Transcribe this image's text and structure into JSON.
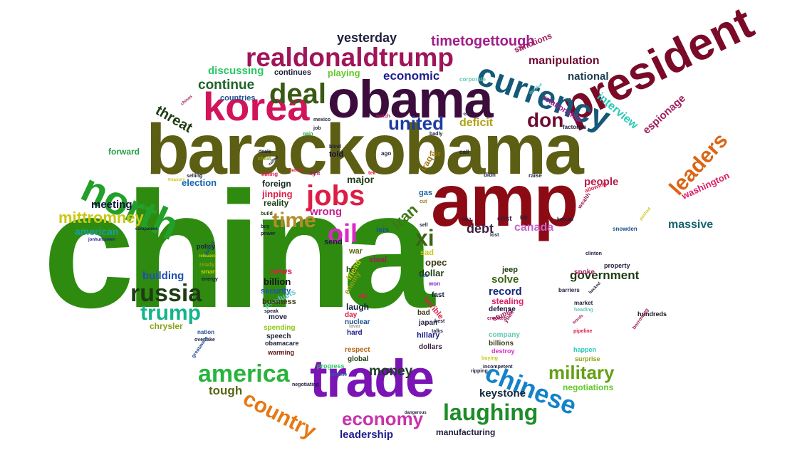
{
  "words": [
    {
      "text": "china",
      "color": "#2e8b0f"
    },
    {
      "text": "barackobama",
      "color": "#5c5e14"
    },
    {
      "text": "amp",
      "color": "#8b0a14"
    },
    {
      "text": "obama",
      "color": "#3c0c3c"
    },
    {
      "text": "trade",
      "color": "#7a14b4"
    },
    {
      "text": "president",
      "color": "#7a0a28"
    },
    {
      "text": "korea",
      "color": "#d2145a"
    },
    {
      "text": "north",
      "color": "#22a02a"
    },
    {
      "text": "currency",
      "color": "#145a78"
    },
    {
      "text": "realdonaldtrump",
      "color": "#a0145a"
    },
    {
      "text": "deal",
      "color": "#3a5a14"
    },
    {
      "text": "jobs",
      "color": "#dc1e46"
    },
    {
      "text": "oil",
      "color": "#dc28c8"
    },
    {
      "text": "russia",
      "color": "#1e3c14"
    },
    {
      "text": "america",
      "color": "#28b43c"
    },
    {
      "text": "trump",
      "color": "#14b48c"
    },
    {
      "text": "chinese",
      "color": "#1482c8"
    },
    {
      "text": "country",
      "color": "#e67814"
    },
    {
      "text": "laughing",
      "color": "#1e8c28"
    },
    {
      "text": "economy",
      "color": "#c832aa"
    },
    {
      "text": "leaders",
      "color": "#dc6414"
    },
    {
      "text": "don",
      "color": "#6e0a32"
    },
    {
      "text": "time",
      "color": "#b48c28"
    },
    {
      "text": "xi",
      "color": "#3c6414"
    },
    {
      "text": "military",
      "color": "#64a014"
    },
    {
      "text": "united",
      "color": "#1e3ca0"
    },
    {
      "text": "timetogettough",
      "color": "#a01e8c"
    },
    {
      "text": "mittromney",
      "color": "#c8c814"
    },
    {
      "text": "money",
      "color": "#1e3c28"
    },
    {
      "text": "yesterday",
      "color": "#1e1e3c"
    },
    {
      "text": "interview",
      "color": "#28c8b4"
    },
    {
      "text": "espionage",
      "color": "#a01e5a"
    },
    {
      "text": "threat",
      "color": "#1e3c14"
    },
    {
      "text": "continue",
      "color": "#1e6428"
    },
    {
      "text": "economic",
      "color": "#1e1e8c"
    },
    {
      "text": "manipulation",
      "color": "#6e0a32"
    },
    {
      "text": "government",
      "color": "#1e3c14"
    },
    {
      "text": "massive",
      "color": "#14646e"
    },
    {
      "text": "debt",
      "color": "#3c1e3c"
    },
    {
      "text": "iran",
      "color": "#3c7814"
    },
    {
      "text": "canada",
      "color": "#c864c8"
    },
    {
      "text": "deficit",
      "color": "#b4a014"
    },
    {
      "text": "building",
      "color": "#1e50b4"
    },
    {
      "text": "leadership",
      "color": "#1e1e8c"
    },
    {
      "text": "keystone",
      "color": "#14283c"
    },
    {
      "text": "tough",
      "color": "#5a6414"
    },
    {
      "text": "american",
      "color": "#14a0a0"
    },
    {
      "text": "meeting",
      "color": "#14143c"
    },
    {
      "text": "discussing",
      "color": "#28c864"
    },
    {
      "text": "people",
      "color": "#b41e46"
    },
    {
      "text": "washington",
      "color": "#dc1e64"
    },
    {
      "text": "national",
      "color": "#1e3c50"
    },
    {
      "text": "wrong",
      "color": "#c81e8c"
    },
    {
      "text": "major",
      "color": "#1e3c14"
    },
    {
      "text": "solve",
      "color": "#3c6414"
    },
    {
      "text": "record",
      "color": "#14287a"
    },
    {
      "text": "chrysler",
      "color": "#8ca014"
    },
    {
      "text": "negotiations",
      "color": "#64c828"
    },
    {
      "text": "manufacturing",
      "color": "#1e1e3c"
    },
    {
      "text": "playing",
      "color": "#64c828"
    },
    {
      "text": "election",
      "color": "#1464b4"
    },
    {
      "text": "sanctions",
      "color": "#a01e5a"
    },
    {
      "text": "jinping",
      "color": "#dc1e46"
    },
    {
      "text": "reality",
      "color": "#1e3c14"
    },
    {
      "text": "opec",
      "color": "#3c3c14"
    },
    {
      "text": "dollar",
      "color": "#1e3c14"
    },
    {
      "text": "laugh",
      "color": "#141e3c"
    },
    {
      "text": "billion",
      "color": "#14141e"
    },
    {
      "text": "news",
      "color": "#dc1e46"
    },
    {
      "text": "stealing",
      "color": "#dc1e64"
    },
    {
      "text": "foreign",
      "color": "#14281e"
    },
    {
      "text": "forward",
      "color": "#28a046"
    },
    {
      "text": "continues",
      "color": "#1e1e3c"
    },
    {
      "text": "countries",
      "color": "#1e508c"
    },
    {
      "text": "relationship",
      "color": "#a01e8c"
    },
    {
      "text": "told",
      "color": "#14143c"
    },
    {
      "text": "send",
      "color": "#1e1e3c"
    },
    {
      "text": "isis",
      "color": "#1e508c"
    },
    {
      "text": "war",
      "color": "#5a6414"
    },
    {
      "text": "steal",
      "color": "#a01e5a"
    },
    {
      "text": "sad",
      "color": "#c8c814"
    },
    {
      "text": "hit",
      "color": "#1e3c14"
    },
    {
      "text": "friend",
      "color": "#c8c814"
    },
    {
      "text": "enemy",
      "color": "#8ca014"
    },
    {
      "text": "security",
      "color": "#1e50b4"
    },
    {
      "text": "products",
      "color": "#64c8c8"
    },
    {
      "text": "business",
      "color": "#3c3c14"
    },
    {
      "text": "move",
      "color": "#1e1e3c"
    },
    {
      "text": "spending",
      "color": "#8cc814"
    },
    {
      "text": "speech",
      "color": "#1e1e3c"
    },
    {
      "text": "obamacare",
      "color": "#1e1e3c"
    },
    {
      "text": "warming",
      "color": "#5a1414"
    },
    {
      "text": "nuclear",
      "color": "#1e508c"
    },
    {
      "text": "hard",
      "color": "#1e1e8c"
    },
    {
      "text": "respect",
      "color": "#b46414"
    },
    {
      "text": "global",
      "color": "#1e3c14"
    },
    {
      "text": "day",
      "color": "#dc1e46"
    },
    {
      "text": "lavar",
      "color": "#a0a0a0"
    },
    {
      "text": "terrible",
      "color": "#dc1e46"
    },
    {
      "text": "fast",
      "color": "#1e1e3c"
    },
    {
      "text": "bad",
      "color": "#3c3c14"
    },
    {
      "text": "japan",
      "color": "#1e1e3c"
    },
    {
      "text": "hillary",
      "color": "#1e1e8c"
    },
    {
      "text": "dollars",
      "color": "#3c1e3c"
    },
    {
      "text": "stupid",
      "color": "#a01e5a"
    },
    {
      "text": "jeep",
      "color": "#1e3c14"
    },
    {
      "text": "defense",
      "color": "#14143c"
    },
    {
      "text": "company",
      "color": "#64c8b4"
    },
    {
      "text": "billions",
      "color": "#3c3c14"
    },
    {
      "text": "destroy",
      "color": "#dc28c8"
    },
    {
      "text": "cost",
      "color": "#3c1e3c"
    },
    {
      "text": "gas",
      "color": "#1e64a0"
    },
    {
      "text": "iraq",
      "color": "#a07814"
    },
    {
      "text": "property",
      "color": "#1e1e3c"
    },
    {
      "text": "spoke",
      "color": "#a01e5a"
    },
    {
      "text": "market",
      "color": "#1e1e3c"
    },
    {
      "text": "hundreds",
      "color": "#14141e"
    },
    {
      "text": "happen",
      "color": "#28c8b4"
    },
    {
      "text": "surprise",
      "color": "#8ca014"
    },
    {
      "text": "policy",
      "color": "#1e1e3c"
    },
    {
      "text": "ready",
      "color": "#8ca014"
    },
    {
      "text": "smart",
      "color": "#c8c814"
    },
    {
      "text": "energy",
      "color": "#1e1e3c"
    },
    {
      "text": "nation",
      "color": "#1e508c"
    },
    {
      "text": "overtake",
      "color": "#1e1e3c"
    },
    {
      "text": "greatawire",
      "color": "#1e508c"
    },
    {
      "text": "progress",
      "color": "#28c864"
    },
    {
      "text": "negotiating",
      "color": "#1e1e3c"
    },
    {
      "text": "fortune",
      "color": "#1e64a0"
    },
    {
      "text": "ally",
      "color": "#dc1e46"
    },
    {
      "text": "snowden",
      "color": "#1e508c"
    },
    {
      "text": "wealth",
      "color": "#a01e5a"
    },
    {
      "text": "allowing",
      "color": "#dc1e46"
    },
    {
      "text": "factories",
      "color": "#1e1e3c"
    },
    {
      "text": "corporate",
      "color": "#64c8b4"
    },
    {
      "text": "raise",
      "color": "#1e1e3c"
    },
    {
      "text": "call",
      "color": "#1e1e3c"
    },
    {
      "text": "fair",
      "color": "#a07814"
    },
    {
      "text": "ago",
      "color": "#1e1e3c"
    },
    {
      "text": "didn",
      "color": "#1e1e3c"
    },
    {
      "text": "deals",
      "color": "#1e1e3c"
    },
    {
      "text": "cheat",
      "color": "#8ca014"
    },
    {
      "text": "gain",
      "color": "#28a046"
    },
    {
      "text": "job",
      "color": "#1e1e3c"
    },
    {
      "text": "mexico",
      "color": "#1e1e3c"
    },
    {
      "text": "watch",
      "color": "#a01e5a"
    },
    {
      "text": "badly",
      "color": "#1e1e3c"
    },
    {
      "text": "blind",
      "color": "#1e1e3c"
    },
    {
      "text": "killing",
      "color": "#dc1e46"
    },
    {
      "text": "selling",
      "color": "#1e1e3c"
    },
    {
      "text": "treasury",
      "color": "#c8c814"
    },
    {
      "text": "fight",
      "color": "#a01e5a"
    },
    {
      "text": "tek",
      "color": "#dc1e46"
    },
    {
      "text": "companies",
      "color": "#1e1e3c"
    },
    {
      "text": "jonhuntsmen",
      "color": "#1e1e8c"
    },
    {
      "text": "power",
      "color": "#1e1e3c"
    },
    {
      "text": "build",
      "color": "#1e3c14"
    },
    {
      "text": "buy",
      "color": "#1e1e3c"
    },
    {
      "text": "lost",
      "color": "#1e1e3c"
    },
    {
      "text": "left",
      "color": "#1e1e3c"
    },
    {
      "text": "korean",
      "color": "#1e1e3c"
    },
    {
      "text": "clinton",
      "color": "#1e1e3c"
    },
    {
      "text": "pipeline",
      "color": "#dc1e46"
    },
    {
      "text": "borrowing",
      "color": "#a01e5a"
    },
    {
      "text": "heading",
      "color": "#64c8b4"
    },
    {
      "text": "barriers",
      "color": "#1e1e3c"
    },
    {
      "text": "crooked",
      "color": "#a01e5a"
    },
    {
      "text": "talks",
      "color": "#1e1e3c"
    },
    {
      "text": "buying",
      "color": "#c8c814"
    },
    {
      "text": "incompetent",
      "color": "#1e1e3c"
    },
    {
      "text": "ripping",
      "color": "#1e1e3c"
    },
    {
      "text": "dangerous",
      "color": "#1e1e3c"
    },
    {
      "text": "released",
      "color": "#c8c814"
    },
    {
      "text": "joined",
      "color": "#1e508c"
    },
    {
      "text": "speak",
      "color": "#1e1e3c"
    },
    {
      "text": "usa",
      "color": "#1e508c"
    },
    {
      "text": "won",
      "color": "#8c28c8"
    },
    {
      "text": "best",
      "color": "#1e1e3c"
    },
    {
      "text": "yuan",
      "color": "#a01e5a"
    },
    {
      "text": "sell",
      "color": "#1e1e3c"
    },
    {
      "text": "cut",
      "color": "#a07814"
    },
    {
      "text": "called",
      "color": "#1e1e3c"
    },
    {
      "text": "firing",
      "color": "#1e1e3c"
    },
    {
      "text": "limit",
      "color": "#1e1e3c"
    },
    {
      "text": "devalue",
      "color": "#64c8b4"
    },
    {
      "text": "hacked",
      "color": "#1e1e3c"
    },
    {
      "text": "words",
      "color": "#a01e5a"
    },
    {
      "text": "pushed",
      "color": "#c8c814"
    },
    {
      "text": "chinas",
      "color": "#a01e5a"
    },
    {
      "text": "deficits",
      "color": "#dc1e46"
    }
  ]
}
